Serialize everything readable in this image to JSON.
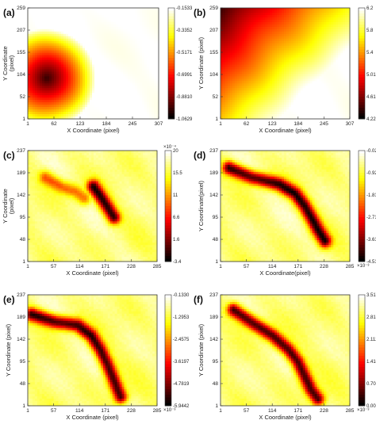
{
  "chart_data": [
    {
      "type": "heatmap",
      "panel_label": "(a)",
      "xlabel": "X Coordinate (pixel)",
      "ylabel": "Y Coordinate\n(pixel)",
      "xticks": [
        "1",
        "62",
        "123",
        "184",
        "245",
        "307"
      ],
      "yticks": [
        "1",
        "52",
        "104",
        "155",
        "207",
        "259"
      ],
      "xlim": [
        1,
        307
      ],
      "ylim": [
        1,
        259
      ],
      "colorbar": {
        "min": -1.0629,
        "max": -0.1533,
        "ticks": [
          "-0.1533",
          "-0.3352",
          "-0.5171",
          "-0.6991",
          "-0.8810",
          "-1.0629"
        ],
        "multiplier": ""
      },
      "colormap": "hot",
      "features": [
        {
          "kind": "blob",
          "x": 45,
          "y": 95,
          "r": 115,
          "weight": 1.0
        }
      ]
    },
    {
      "type": "heatmap",
      "panel_label": "(b)",
      "xlabel": "X Coordinate (pixel)",
      "ylabel": "Y Coordinate (pixel)",
      "xticks": [
        "1",
        "62",
        "123",
        "184",
        "245",
        "307"
      ],
      "yticks": [
        "1",
        "52",
        "104",
        "155",
        "207",
        "259"
      ],
      "xlim": [
        1,
        307
      ],
      "ylim": [
        1,
        259
      ],
      "colorbar": {
        "min": 4.22,
        "max": 6.2,
        "ticks": [
          "6.2",
          "5.8",
          "5.4",
          "5.01",
          "4.61",
          "4.22"
        ],
        "multiplier": ""
      },
      "colormap": "hot",
      "features": [
        {
          "kind": "gradient",
          "from": [
            1,
            259
          ],
          "to": [
            200,
            60
          ],
          "weight": 1.0
        }
      ]
    },
    {
      "type": "heatmap",
      "panel_label": "(c)",
      "xlabel": "X Coordinate (pixel)",
      "ylabel": "Y Coordinate\n(pixel)",
      "xticks": [
        "1",
        "57",
        "114",
        "171",
        "228",
        "285"
      ],
      "yticks": [
        "1",
        "48",
        "95",
        "142",
        "189",
        "237"
      ],
      "xlim": [
        1,
        285
      ],
      "ylim": [
        1,
        237
      ],
      "colorbar": {
        "min": -3.4,
        "max": 20,
        "ticks": [
          "20",
          "15.5",
          "11",
          "6.6",
          "1.6",
          "-3.4"
        ],
        "multiplier": "×10⁻⁴"
      },
      "colormap": "hot",
      "features": [
        {
          "kind": "path",
          "points": [
            [
              40,
              180
            ],
            [
              75,
              160
            ],
            [
              105,
              150
            ],
            [
              125,
              135
            ]
          ],
          "weight": 0.45
        },
        {
          "kind": "path",
          "points": [
            [
              145,
              160
            ],
            [
              160,
              140
            ],
            [
              175,
              118
            ],
            [
              190,
              95
            ]
          ],
          "weight": 0.95
        }
      ]
    },
    {
      "type": "heatmap",
      "panel_label": "(d)",
      "xlabel": "X Coordinate(pixel)",
      "ylabel": "Y Coordinate(pixel)",
      "xticks": [
        "1",
        "57",
        "114",
        "171",
        "228",
        "285"
      ],
      "yticks": [
        "1",
        "48",
        "95",
        "142",
        "189",
        "237"
      ],
      "xlim": [
        1,
        285
      ],
      "ylim": [
        1,
        237
      ],
      "colorbar": {
        "min": -4.5168,
        "max": -0.0211,
        "ticks": [
          "-0.0211",
          "-0.9202",
          "-1.8194",
          "-2.7185",
          "-3.6177",
          "-4.5168"
        ],
        "multiplier": "×10⁻³"
      },
      "colormap": "hot",
      "features": [
        {
          "kind": "path",
          "points": [
            [
              20,
              200
            ],
            [
              70,
              180
            ],
            [
              130,
              165
            ],
            [
              165,
              145
            ],
            [
              185,
              120
            ],
            [
              200,
              95
            ],
            [
              215,
              68
            ],
            [
              230,
              45
            ]
          ],
          "weight": 0.95
        }
      ]
    },
    {
      "type": "heatmap",
      "panel_label": "(e)",
      "xlabel": "X Coordinate (pixel)",
      "ylabel": "Y Coordinate (pixel)",
      "xticks": [
        "1",
        "57",
        "114",
        "171",
        "228",
        "285"
      ],
      "yticks": [
        "1",
        "48",
        "95",
        "142",
        "189",
        "237"
      ],
      "xlim": [
        1,
        285
      ],
      "ylim": [
        1,
        237
      ],
      "colorbar": {
        "min": -5.9442,
        "max": -0.133,
        "ticks": [
          "-0.1330",
          "-1.2953",
          "-2.4575",
          "-3.6197",
          "-4.7819",
          "-5.9442"
        ],
        "multiplier": "×10⁻³"
      },
      "colormap": "hot",
      "features": [
        {
          "kind": "path",
          "points": [
            [
              10,
              195
            ],
            [
              60,
              180
            ],
            [
              110,
              172
            ],
            [
              140,
              150
            ],
            [
              160,
              120
            ],
            [
              175,
              90
            ],
            [
              190,
              55
            ],
            [
              205,
              20
            ]
          ],
          "weight": 0.95
        }
      ]
    },
    {
      "type": "heatmap",
      "panel_label": "(f)",
      "xlabel": "X Coordinate (pixel)",
      "ylabel": "Y Coordinate (pixel)",
      "xticks": [
        "1",
        "57",
        "114",
        "171",
        "228",
        "285"
      ],
      "yticks": [
        "1",
        "48",
        "95",
        "142",
        "189",
        "237"
      ],
      "xlim": [
        1,
        285
      ],
      "ylim": [
        1,
        237
      ],
      "colorbar": {
        "min": 0.0059,
        "max": 3.5174,
        "ticks": [
          "3.5174",
          "2.8151",
          "2.1128",
          "1.4105",
          "0.7082",
          "0.0059"
        ],
        "multiplier": "×10⁻³"
      },
      "colormap": "hot",
      "features": [
        {
          "kind": "path",
          "points": [
            [
              30,
              205
            ],
            [
              75,
              175
            ],
            [
              115,
              150
            ],
            [
              150,
              120
            ],
            [
              170,
              95
            ],
            [
              185,
              65
            ],
            [
              200,
              35
            ],
            [
              215,
              15
            ]
          ],
          "weight": 0.95
        }
      ]
    }
  ]
}
